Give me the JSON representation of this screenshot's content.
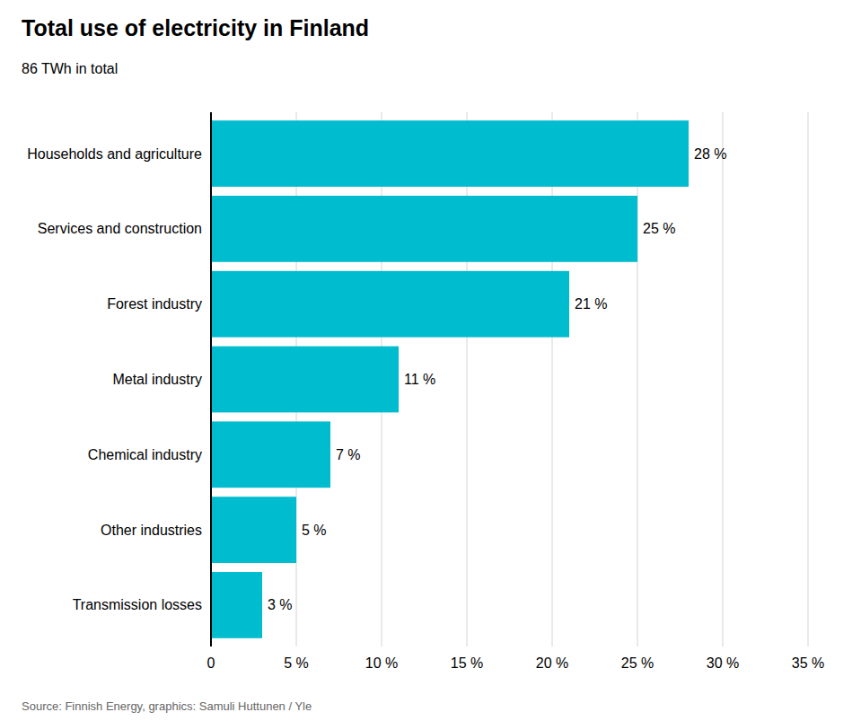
{
  "chart_data": {
    "type": "bar",
    "orientation": "horizontal",
    "title": "Total use of electricity in Finland",
    "subtitle": "86 TWh in total",
    "annotations": [
      "Source: Finnish Energy, graphics: Samuli Huttunen / Yle"
    ],
    "categories": [
      "Households and agriculture",
      "Services and construction",
      "Forest industry",
      "Metal industry",
      "Chemical industry",
      "Other industries",
      "Transmission losses"
    ],
    "values": [
      28,
      25,
      21,
      11,
      7,
      5,
      3
    ],
    "value_labels": [
      "28 %",
      "25 %",
      "21 %",
      "11 %",
      "7 %",
      "5 %",
      "3 %"
    ],
    "data_labels": true,
    "color": "#00BCCF",
    "xlim": [
      0,
      35
    ],
    "xticks": [
      0,
      {
        "value": 5,
        "label": "5 %"
      },
      {
        "value": 10,
        "label": "10 %"
      },
      {
        "value": 15,
        "label": "15 %"
      },
      {
        "value": 20,
        "label": "20 %"
      },
      {
        "value": 25,
        "label": "25 %"
      },
      {
        "value": 30,
        "label": "30 %"
      },
      {
        "value": 35,
        "label": "35 %"
      }
    ],
    "grid": true
  }
}
